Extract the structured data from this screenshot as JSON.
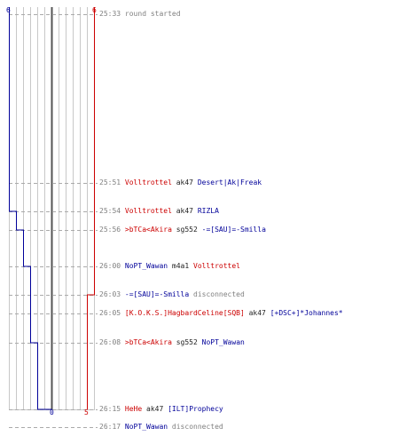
{
  "colors": {
    "team_red": "#cc0000",
    "team_blue": "#000099",
    "neutral_text": "#808080",
    "weapon_text": "#222222",
    "grid": "#c8c8c8",
    "center": "#555555",
    "dash": "#aaaaaa"
  },
  "score_labels": {
    "blue_start": "6",
    "red_start": "6",
    "blue_end": "0",
    "red_end": "5"
  },
  "chart_data": {
    "type": "line",
    "y_unit": "event index",
    "series": [
      {
        "color": "#000099",
        "values": [
          6,
          6,
          5,
          4,
          3,
          3,
          3,
          2,
          1,
          1,
          0,
          0
        ]
      },
      {
        "color": "#cc0000",
        "values": [
          6,
          6,
          6,
          6,
          6,
          5,
          5,
          5,
          5,
          5,
          5,
          5
        ]
      }
    ]
  },
  "events": [
    {
      "time": "25:33",
      "parts": [
        {
          "text": "round started",
          "cls": "msg"
        }
      ]
    },
    {
      "time": "25:51",
      "parts": [
        {
          "text": "Volltrottel",
          "cls": "red"
        },
        {
          "text": "ak47",
          "cls": "weapon"
        },
        {
          "text": "Desert|Ak|Freak",
          "cls": "blue"
        }
      ]
    },
    {
      "time": "25:54",
      "parts": [
        {
          "text": "Volltrottel",
          "cls": "red"
        },
        {
          "text": "ak47",
          "cls": "weapon"
        },
        {
          "text": "RIZLA",
          "cls": "blue"
        }
      ]
    },
    {
      "time": "25:56",
      "parts": [
        {
          "text": ">bTCa<Akira",
          "cls": "red"
        },
        {
          "text": "sg552",
          "cls": "weapon"
        },
        {
          "text": "-=[SAU]=-Smilla",
          "cls": "blue"
        }
      ]
    },
    {
      "time": "26:00",
      "parts": [
        {
          "text": "NoPT_Wawan",
          "cls": "blue"
        },
        {
          "text": "m4a1",
          "cls": "weapon"
        },
        {
          "text": "Volltrottel",
          "cls": "red"
        }
      ]
    },
    {
      "time": "26:03",
      "parts": [
        {
          "text": "-=[SAU]=-Smilla",
          "cls": "blue"
        },
        {
          "text": "disconnected",
          "cls": "msg"
        }
      ]
    },
    {
      "time": "26:05",
      "parts": [
        {
          "text": "[K.O.K.S.]HagbardCeline[SQB]",
          "cls": "red"
        },
        {
          "text": "ak47",
          "cls": "weapon"
        },
        {
          "text": "[+DSC+]*Johannes*",
          "cls": "blue"
        }
      ]
    },
    {
      "time": "26:08",
      "parts": [
        {
          "text": ">bTCa<Akira",
          "cls": "red"
        },
        {
          "text": "sg552",
          "cls": "weapon"
        },
        {
          "text": "NoPT_Wawan",
          "cls": "blue"
        }
      ]
    },
    {
      "time": "26:15",
      "parts": [
        {
          "text": "HeHe",
          "cls": "red"
        },
        {
          "text": "ak47",
          "cls": "weapon"
        },
        {
          "text": "[ILT]Prophecy",
          "cls": "blue"
        }
      ]
    },
    {
      "time": "26:17",
      "parts": [
        {
          "text": "NoPT_Wawan",
          "cls": "blue"
        },
        {
          "text": "disconnected",
          "cls": "msg"
        }
      ]
    }
  ]
}
